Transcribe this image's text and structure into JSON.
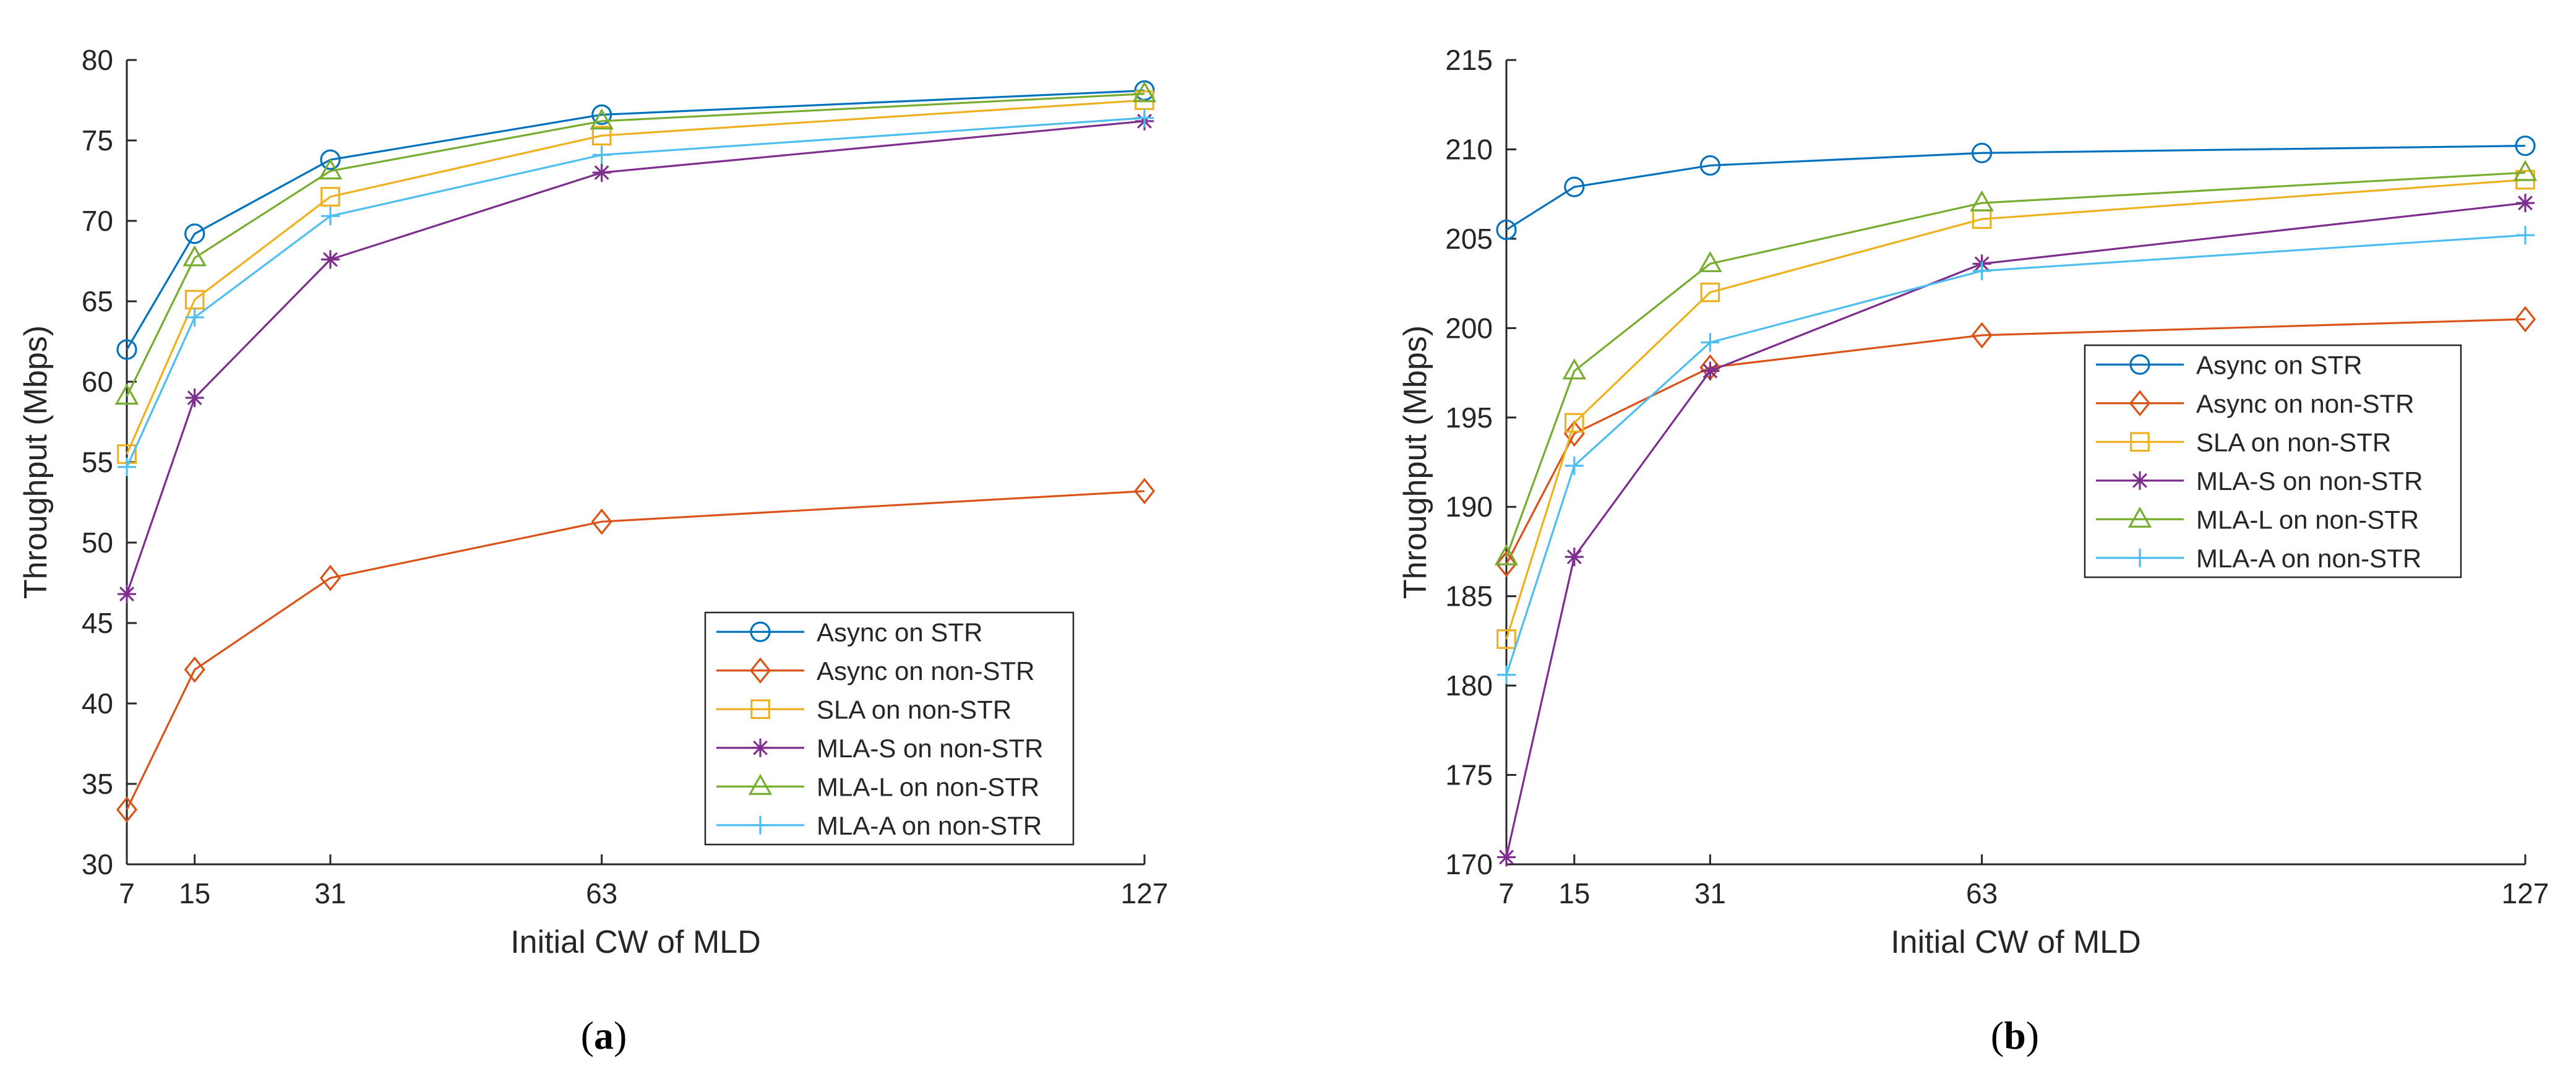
{
  "chart_data": [
    {
      "type": "line",
      "caption_letter": "a",
      "xlabel": "Initial CW of MLD",
      "ylabel": "Throughput (Mbps)",
      "x": [
        7,
        15,
        31,
        63,
        127
      ],
      "xlim": [
        7,
        127
      ],
      "ylim": [
        30,
        80
      ],
      "yticks": [
        30,
        35,
        40,
        45,
        50,
        55,
        60,
        65,
        70,
        75,
        80
      ],
      "legend_position": "bottom-right",
      "series": [
        {
          "name": "Async on STR",
          "marker": "circle",
          "color": "#0072BD",
          "values": [
            62.0,
            69.2,
            73.8,
            76.6,
            78.1
          ]
        },
        {
          "name": "Async on non-STR",
          "marker": "diamond",
          "color": "#D95319",
          "values": [
            33.4,
            42.1,
            47.8,
            51.3,
            53.2
          ]
        },
        {
          "name": "SLA on non-STR",
          "marker": "square",
          "color": "#EDB120",
          "values": [
            55.5,
            65.1,
            71.5,
            75.3,
            77.5
          ]
        },
        {
          "name": "MLA-S on non-STR",
          "marker": "asterisk",
          "color": "#7E2F8E",
          "values": [
            46.8,
            59.0,
            67.6,
            73.0,
            76.2
          ]
        },
        {
          "name": "MLA-L on non-STR",
          "marker": "triangle",
          "color": "#77AC30",
          "values": [
            59.1,
            67.7,
            73.1,
            76.2,
            77.9
          ]
        },
        {
          "name": "MLA-A on non-STR",
          "marker": "plus",
          "color": "#4DBEEE",
          "values": [
            54.7,
            64.0,
            70.3,
            74.1,
            76.4
          ]
        }
      ]
    },
    {
      "type": "line",
      "caption_letter": "b",
      "xlabel": "Initial CW of MLD",
      "ylabel": "Throughput (Mbps)",
      "x": [
        7,
        15,
        31,
        63,
        127
      ],
      "xlim": [
        7,
        127
      ],
      "ylim": [
        170,
        215
      ],
      "yticks": [
        170,
        175,
        180,
        185,
        190,
        195,
        200,
        205,
        210,
        215
      ],
      "legend_position": "middle-right",
      "series": [
        {
          "name": "Async on STR",
          "marker": "circle",
          "color": "#0072BD",
          "values": [
            205.5,
            207.9,
            209.1,
            209.8,
            210.2
          ]
        },
        {
          "name": "Async on non-STR",
          "marker": "diamond",
          "color": "#D95319",
          "values": [
            186.8,
            194.1,
            197.8,
            199.6,
            200.5
          ]
        },
        {
          "name": "SLA on non-STR",
          "marker": "square",
          "color": "#EDB120",
          "values": [
            182.6,
            194.7,
            202.0,
            206.1,
            208.3
          ]
        },
        {
          "name": "MLA-S on non-STR",
          "marker": "asterisk",
          "color": "#7E2F8E",
          "values": [
            170.4,
            187.2,
            197.6,
            203.6,
            207.0
          ]
        },
        {
          "name": "MLA-L on non-STR",
          "marker": "triangle",
          "color": "#77AC30",
          "values": [
            187.2,
            197.6,
            203.6,
            207.0,
            208.7
          ]
        },
        {
          "name": "MLA-A on non-STR",
          "marker": "plus",
          "color": "#4DBEEE",
          "values": [
            180.6,
            192.3,
            199.2,
            203.2,
            205.2
          ]
        }
      ]
    }
  ]
}
